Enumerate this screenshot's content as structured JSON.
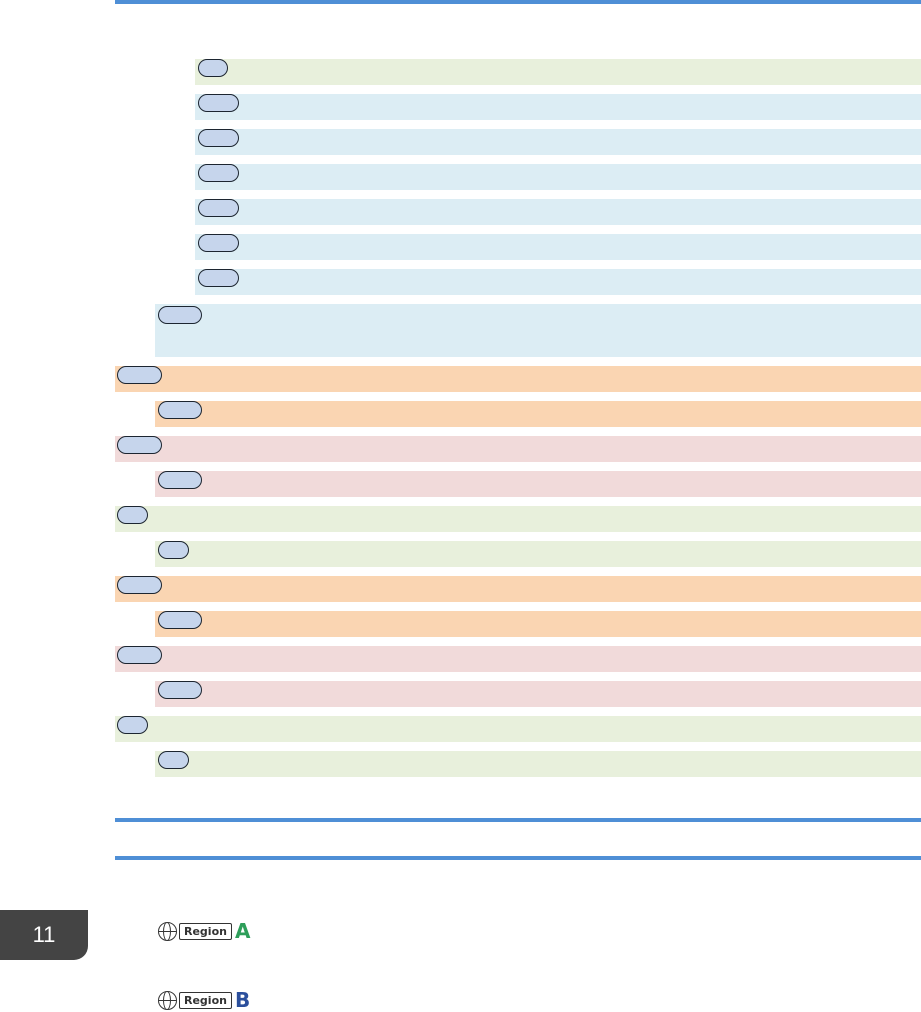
{
  "chapter": {
    "number": "11"
  },
  "regions": {
    "a": {
      "word": "Region",
      "letter": "A",
      "color": "#2e9e5a"
    },
    "b": {
      "word": "Region",
      "letter": "B",
      "color": "#2b4f9c"
    }
  },
  "colors": {
    "rule": "#4f8fd6",
    "green": "#e8f0dc",
    "blue": "#dcedf4",
    "orange": "#fad5b2",
    "pink": "#f1dada",
    "key_fill": "#c6d5ec"
  }
}
